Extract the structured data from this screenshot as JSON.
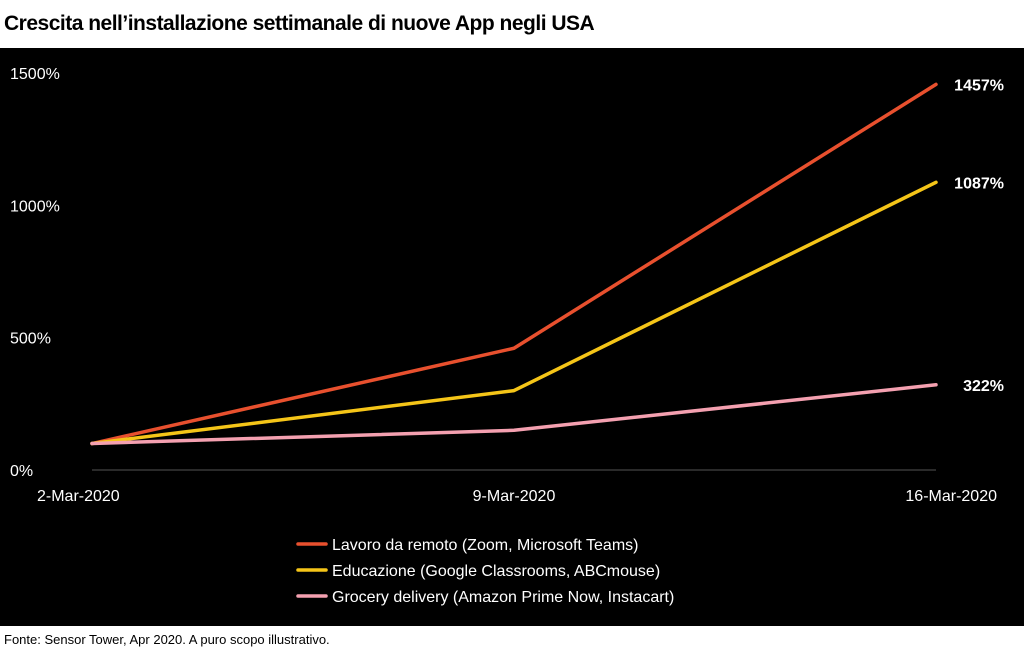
{
  "chart_data": {
    "type": "line",
    "title": "Crescita nell’installazione settimanale di nuove App negli USA",
    "xlabel": "",
    "ylabel": "",
    "x": [
      "2-Mar-2020",
      "9-Mar-2020",
      "16-Mar-2020"
    ],
    "ylim": [
      0,
      1500
    ],
    "yticks": [
      0,
      500,
      1000,
      1500
    ],
    "ytick_labels": [
      "0%",
      "500%",
      "1000%",
      "1500%"
    ],
    "grid": false,
    "legend_position": "bottom-center",
    "series": [
      {
        "name": "Lavoro da remoto (Zoom, Microsoft Teams)",
        "color": "#e8502e",
        "values": [
          100,
          460,
          1457
        ],
        "end_label": "1457%"
      },
      {
        "name": "Educazione (Google Classrooms, ABCmouse)",
        "color": "#f5c518",
        "values": [
          100,
          300,
          1087
        ],
        "end_label": "1087%"
      },
      {
        "name": "Grocery delivery (Amazon Prime Now, Instacart)",
        "color": "#f4a0b0",
        "values": [
          100,
          150,
          322
        ],
        "end_label": "322%"
      }
    ],
    "source": "Fonte: Sensor Tower, Apr 2020. A puro scopo illustrativo."
  }
}
